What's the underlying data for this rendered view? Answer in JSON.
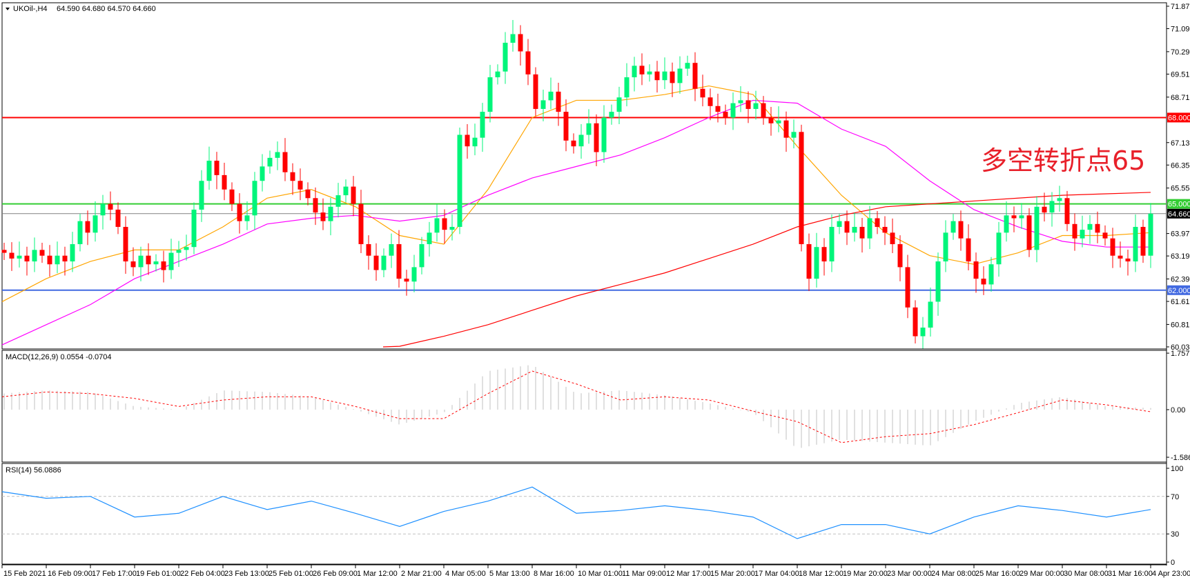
{
  "header": {
    "menu_icon": "triangle-down-icon",
    "symbol": "UKOil-,H4",
    "ohlc": "64.590 64.680 64.570 64.660"
  },
  "annotation": "多空转折点65",
  "colors": {
    "bull": "#00f57a",
    "bear": "#ff0000",
    "ma_fast": "#ffa500",
    "ma_mid": "#ff00ff",
    "ma_slow": "#ff0000",
    "macd_hist": "#c0c0c0",
    "macd_signal": "#ff0000",
    "rsi": "#1e90ff"
  },
  "levels": [
    {
      "value": 68.0,
      "label": "68.000",
      "color": "#ff0000"
    },
    {
      "value": 65.0,
      "label": "65.000",
      "color": "#32cd32"
    },
    {
      "value": 64.66,
      "label": "64.660",
      "color": "#000000",
      "line": "#808080"
    },
    {
      "value": 62.0,
      "label": "62.000",
      "color": "#4169e1"
    }
  ],
  "chart_data": [
    {
      "type": "candlestick",
      "title": "UKOil-,H4",
      "ylim": [
        60.03,
        71.87
      ],
      "y_ticks": [
        "71.870",
        "71.090",
        "70.290",
        "69.510",
        "68.710",
        "67.130",
        "66.350",
        "65.550",
        "63.970",
        "63.190",
        "62.390",
        "61.610",
        "60.810",
        "60.030"
      ],
      "x_ticks": [
        "15 Feb 2021",
        "16 Feb 09:00",
        "17 Feb 17:00",
        "19 Feb 01:00",
        "22 Feb 04:00",
        "23 Feb 13:00",
        "25 Feb 01:00",
        "26 Feb 09:00",
        "1 Mar 12:00",
        "2 Mar 21:00",
        "4 Mar 05:00",
        "5 Mar 13:00",
        "8 Mar 16:00",
        "10 Mar 01:00",
        "11 Mar 09:00",
        "12 Mar 17:00",
        "15 Mar 20:00",
        "17 Mar 04:00",
        "18 Mar 12:00",
        "19 Mar 20:00",
        "23 Mar 00:00",
        "24 Mar 08:00",
        "25 Mar 16:00",
        "29 Mar 00:00",
        "30 Mar 08:00",
        "31 Mar 16:00",
        "4 Apr 23:00"
      ],
      "close": [
        63.3,
        63.1,
        63.2,
        63.0,
        63.4,
        63.2,
        62.9,
        63.2,
        63.0,
        63.6,
        64.4,
        64.0,
        64.6,
        65.0,
        64.8,
        64.2,
        63.0,
        62.8,
        63.2,
        62.9,
        63.0,
        62.7,
        63.3,
        63.4,
        63.5,
        64.8,
        65.8,
        66.5,
        66.0,
        65.5,
        65.0,
        64.4,
        64.6,
        65.8,
        66.3,
        66.6,
        66.8,
        66.1,
        65.8,
        65.5,
        65.2,
        64.7,
        64.4,
        64.9,
        65.3,
        65.6,
        65.0,
        63.6,
        63.2,
        62.7,
        63.2,
        63.6,
        62.4,
        62.3,
        62.8,
        63.6,
        64.0,
        64.5,
        64.1,
        64.2,
        67.4,
        67.0,
        67.3,
        68.2,
        69.4,
        69.6,
        70.6,
        70.9,
        70.3,
        69.5,
        68.3,
        68.6,
        68.9,
        68.2,
        67.2,
        67.0,
        67.4,
        67.8,
        66.8,
        68.0,
        68.2,
        68.7,
        69.4,
        69.8,
        69.5,
        69.6,
        69.3,
        69.6,
        69.2,
        69.7,
        69.9,
        69.0,
        68.7,
        68.4,
        68.2,
        68.0,
        68.5,
        68.6,
        68.3,
        68.5,
        68.0,
        67.8,
        67.9,
        67.3,
        67.5,
        63.6,
        62.4,
        63.5,
        63.0,
        64.2,
        64.4,
        64.0,
        64.2,
        63.8,
        64.5,
        64.2,
        64.0,
        63.6,
        62.8,
        61.4,
        60.4,
        60.7,
        61.6,
        63.0,
        64.0,
        64.4,
        63.8,
        63.0,
        62.4,
        62.2,
        62.9,
        64.0,
        64.6,
        64.5,
        64.6,
        63.4,
        64.9,
        64.7,
        65.1,
        65.2,
        64.3,
        63.8,
        64.1,
        64.3,
        64.0,
        63.8,
        63.2,
        63.1,
        63.0,
        64.2,
        63.2,
        64.66
      ],
      "ma_fast_at_ticks": [
        61.6,
        62.4,
        63.0,
        63.4,
        63.4,
        64.2,
        65.2,
        65.5,
        64.9,
        63.9,
        63.6,
        65.5,
        68.0,
        68.6,
        68.6,
        68.8,
        69.1,
        68.8,
        67.0,
        65.3,
        64.0,
        63.2,
        62.9,
        63.3,
        63.9,
        63.9,
        64.0
      ],
      "ma_mid_at_ticks": [
        60.1,
        60.8,
        61.5,
        62.4,
        63.0,
        63.6,
        64.3,
        64.5,
        64.6,
        64.4,
        64.6,
        65.3,
        65.9,
        66.3,
        66.7,
        67.3,
        68.0,
        68.6,
        68.5,
        67.6,
        67.0,
        65.8,
        64.8,
        64.2,
        63.7,
        63.5,
        63.5
      ],
      "ma_slow_at_ticks": [
        null,
        null,
        null,
        null,
        null,
        null,
        null,
        null,
        null,
        60.05,
        60.4,
        60.8,
        61.3,
        61.8,
        62.2,
        62.6,
        63.1,
        63.6,
        64.2,
        64.6,
        64.9,
        65.0,
        65.1,
        65.2,
        65.3,
        65.35,
        65.4
      ]
    },
    {
      "type": "bar+line",
      "title": "MACD(12,26,9) 0.0554 -0.0704",
      "ylim": [
        -1.5867,
        1.7579
      ],
      "y_ticks": [
        "1.7579",
        "0.00",
        "-1.5867"
      ],
      "hist_at_ticks": [
        0.5,
        0.6,
        0.55,
        0.1,
        0.0,
        0.6,
        0.55,
        0.4,
        0.0,
        -0.5,
        -0.1,
        1.2,
        1.4,
        0.5,
        0.6,
        0.45,
        0.2,
        -0.1,
        -1.3,
        -1.0,
        -1.1,
        -1.2,
        -0.4,
        0.2,
        0.4,
        0.1,
        0.05
      ],
      "signal_at_ticks": [
        0.4,
        0.55,
        0.5,
        0.35,
        0.1,
        0.3,
        0.4,
        0.4,
        0.1,
        -0.3,
        -0.3,
        0.5,
        1.2,
        0.8,
        0.3,
        0.4,
        0.3,
        -0.05,
        -0.4,
        -1.1,
        -0.9,
        -0.8,
        -0.5,
        -0.1,
        0.3,
        0.15,
        -0.07
      ]
    },
    {
      "type": "line",
      "title": "RSI(14) 56.0886",
      "ylim": [
        0,
        100
      ],
      "y_ticks": [
        "100",
        "70",
        "30",
        "0"
      ],
      "levels": [
        70,
        30
      ],
      "rsi_at_ticks": [
        75,
        68,
        70,
        48,
        52,
        70,
        56,
        65,
        52,
        38,
        54,
        65,
        80,
        52,
        55,
        60,
        55,
        48,
        25,
        40,
        40,
        30,
        48,
        60,
        55,
        48,
        56
      ]
    }
  ]
}
